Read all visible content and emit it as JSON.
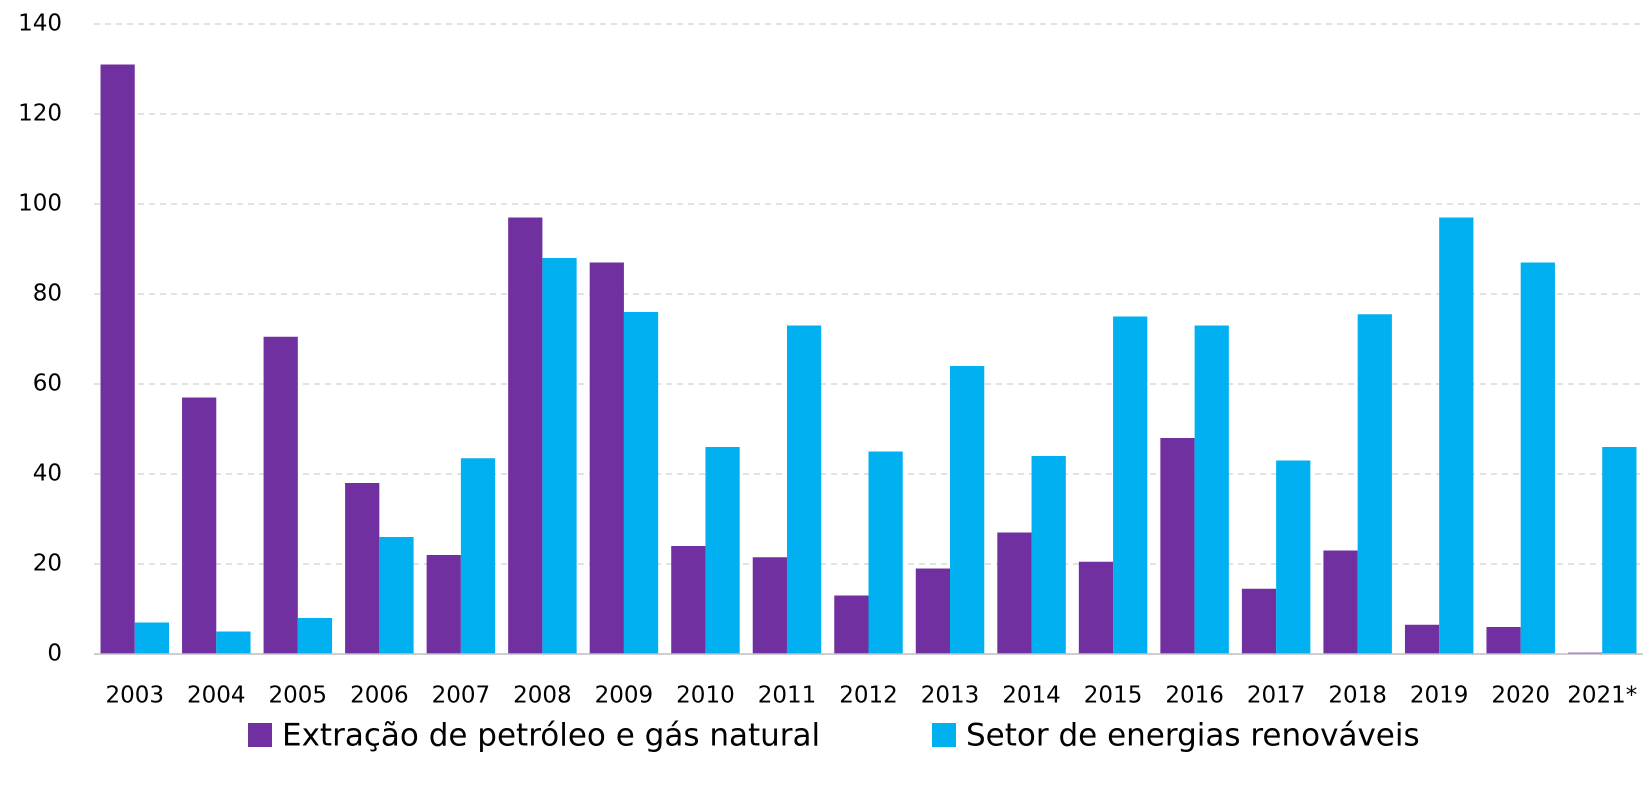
{
  "chart_data": {
    "type": "bar",
    "categories": [
      "2003",
      "2004",
      "2005",
      "2006",
      "2007",
      "2008",
      "2009",
      "2010",
      "2011",
      "2012",
      "2013",
      "2014",
      "2015",
      "2016",
      "2017",
      "2018",
      "2019",
      "2020",
      "2021*"
    ],
    "series": [
      {
        "name": "Extração de petróleo e gás natural",
        "color": "#7030a0",
        "values": [
          131,
          57,
          70.5,
          38,
          22,
          97,
          87,
          24,
          21.5,
          13,
          19,
          27,
          20.5,
          48,
          14.5,
          23,
          6.5,
          6,
          0.3
        ]
      },
      {
        "name": "Setor de energias renováveis",
        "color": "#00b0f0",
        "values": [
          7,
          5,
          8,
          26,
          43.5,
          88,
          76,
          46,
          73,
          45,
          64,
          44,
          75,
          73,
          43,
          75.5,
          97,
          87,
          46
        ]
      }
    ],
    "ylim": [
      0,
      140
    ],
    "yticks": [
      0,
      20,
      40,
      60,
      80,
      100,
      120,
      140
    ],
    "grid": true,
    "legend": "bottom"
  }
}
